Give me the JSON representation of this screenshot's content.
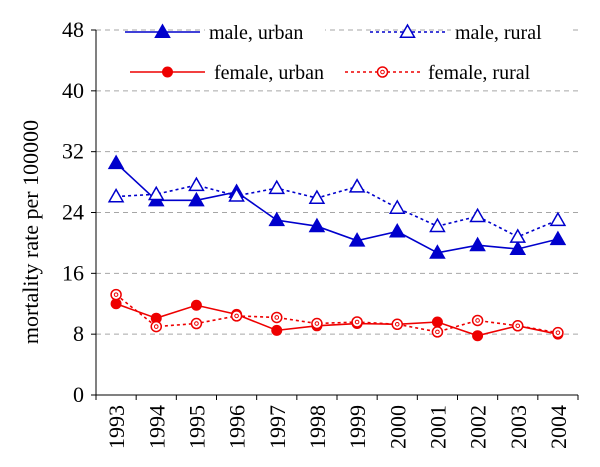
{
  "chart_data": {
    "type": "line",
    "title": "",
    "xlabel": "",
    "ylabel": "mortality rate per 100000",
    "x": [
      "1993",
      "1994",
      "1995",
      "1996",
      "1997",
      "1998",
      "1999",
      "2000",
      "2001",
      "2002",
      "2003",
      "2004"
    ],
    "ylim": [
      0,
      48
    ],
    "yticks": [
      0,
      8,
      16,
      24,
      32,
      40,
      48
    ],
    "grid": "horizontal dashed",
    "legend_position": "top",
    "series": [
      {
        "name": "male, urban",
        "color": "#0000CC",
        "marker": "filled-triangle",
        "line": "solid",
        "values": [
          30.5,
          25.6,
          25.6,
          26.7,
          23.0,
          22.2,
          20.3,
          21.5,
          18.7,
          19.7,
          19.2,
          20.5
        ]
      },
      {
        "name": "male, rural",
        "color": "#0000CC",
        "marker": "open-triangle",
        "line": "dotted",
        "values": [
          26.1,
          26.4,
          27.6,
          26.2,
          27.2,
          25.9,
          27.4,
          24.6,
          22.2,
          23.5,
          20.8,
          23.0
        ]
      },
      {
        "name": "female, urban",
        "color": "#EE0000",
        "marker": "filled-circle",
        "line": "solid",
        "values": [
          12.0,
          10.1,
          11.8,
          10.6,
          8.5,
          9.1,
          9.4,
          9.3,
          9.6,
          7.8,
          9.1,
          8.0
        ]
      },
      {
        "name": "female, rural",
        "color": "#EE0000",
        "marker": "open-circle",
        "line": "dotted",
        "values": [
          13.2,
          9.0,
          9.4,
          10.4,
          10.2,
          9.4,
          9.6,
          9.3,
          8.3,
          9.8,
          9.1,
          8.2
        ]
      }
    ]
  }
}
